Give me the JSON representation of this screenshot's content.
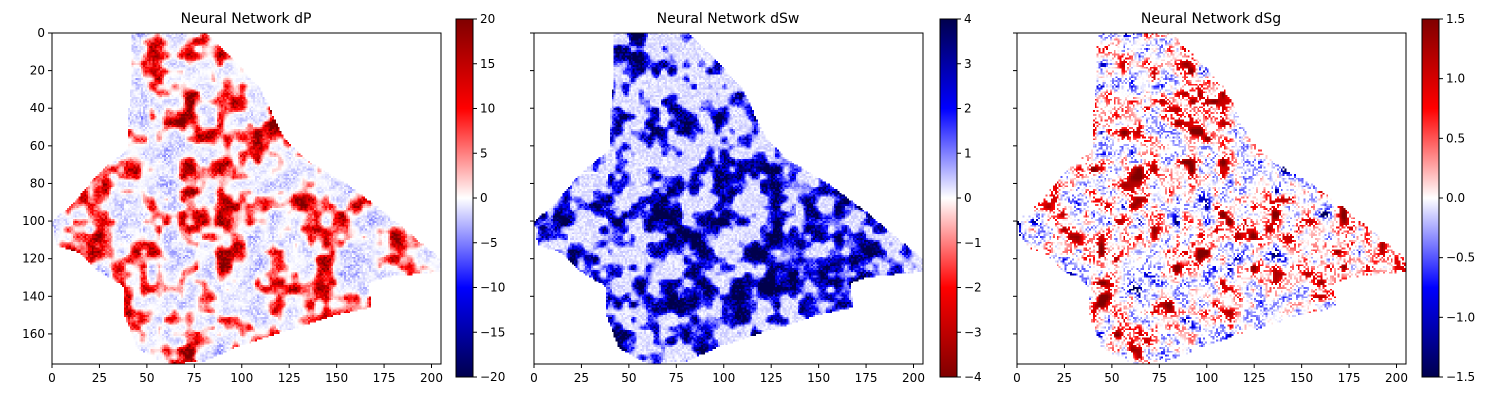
{
  "chart_data": [
    {
      "type": "heatmap",
      "title": "Neural Network dP",
      "colormap": "seismic",
      "colorbar": {
        "min": -20,
        "max": 20,
        "ticks": [
          20,
          15,
          10,
          5,
          0,
          -5,
          -10,
          -15,
          -20
        ]
      },
      "xlim": [
        0,
        205
      ],
      "ylim": [
        176,
        0
      ],
      "x_ticks": [
        0,
        25,
        50,
        75,
        100,
        125,
        150,
        175,
        200
      ],
      "y_ticks": [
        0,
        20,
        40,
        60,
        80,
        100,
        120,
        140,
        160
      ],
      "show_y_tick_labels": true
    },
    {
      "type": "heatmap",
      "title": "Neural Network dSw",
      "colormap": "seismic_r",
      "colorbar": {
        "min": -4,
        "max": 4,
        "ticks": [
          4,
          3,
          2,
          1,
          0,
          -1,
          -2,
          -3,
          -4
        ]
      },
      "xlim": [
        0,
        205
      ],
      "ylim": [
        176,
        0
      ],
      "x_ticks": [
        0,
        25,
        50,
        75,
        100,
        125,
        150,
        175,
        200
      ],
      "y_ticks": [
        0,
        20,
        40,
        60,
        80,
        100,
        120,
        140,
        160
      ],
      "show_y_tick_labels": false
    },
    {
      "type": "heatmap",
      "title": "Neural Network dSg",
      "colormap": "seismic",
      "colorbar": {
        "min": -1.5,
        "max": 1.5,
        "ticks": [
          "1.5",
          "1.0",
          "0.5",
          "0.0",
          "-0.5",
          "-1.0",
          "-1.5"
        ]
      },
      "xlim": [
        0,
        205
      ],
      "ylim": [
        176,
        0
      ],
      "x_ticks": [
        0,
        25,
        50,
        75,
        100,
        125,
        150,
        175,
        200
      ],
      "y_ticks": [
        0,
        20,
        40,
        60,
        80,
        100,
        120,
        140,
        160
      ],
      "show_y_tick_labels": false
    }
  ],
  "region_outline": [
    [
      70,
      0
    ],
    [
      82,
      0
    ],
    [
      92,
      10
    ],
    [
      110,
      30
    ],
    [
      122,
      55
    ],
    [
      135,
      68
    ],
    [
      155,
      80
    ],
    [
      175,
      95
    ],
    [
      195,
      112
    ],
    [
      205,
      120
    ],
    [
      205,
      127
    ],
    [
      175,
      130
    ],
    [
      167,
      133
    ],
    [
      168,
      146
    ],
    [
      150,
      150
    ],
    [
      125,
      158
    ],
    [
      95,
      168
    ],
    [
      80,
      175
    ],
    [
      60,
      176
    ],
    [
      45,
      168
    ],
    [
      38,
      150
    ],
    [
      38,
      135
    ],
    [
      25,
      127
    ],
    [
      15,
      117
    ],
    [
      2,
      113
    ],
    [
      0,
      100
    ],
    [
      10,
      92
    ],
    [
      25,
      74
    ],
    [
      40,
      62
    ],
    [
      40,
      45
    ],
    [
      42,
      25
    ],
    [
      42,
      0
    ]
  ]
}
